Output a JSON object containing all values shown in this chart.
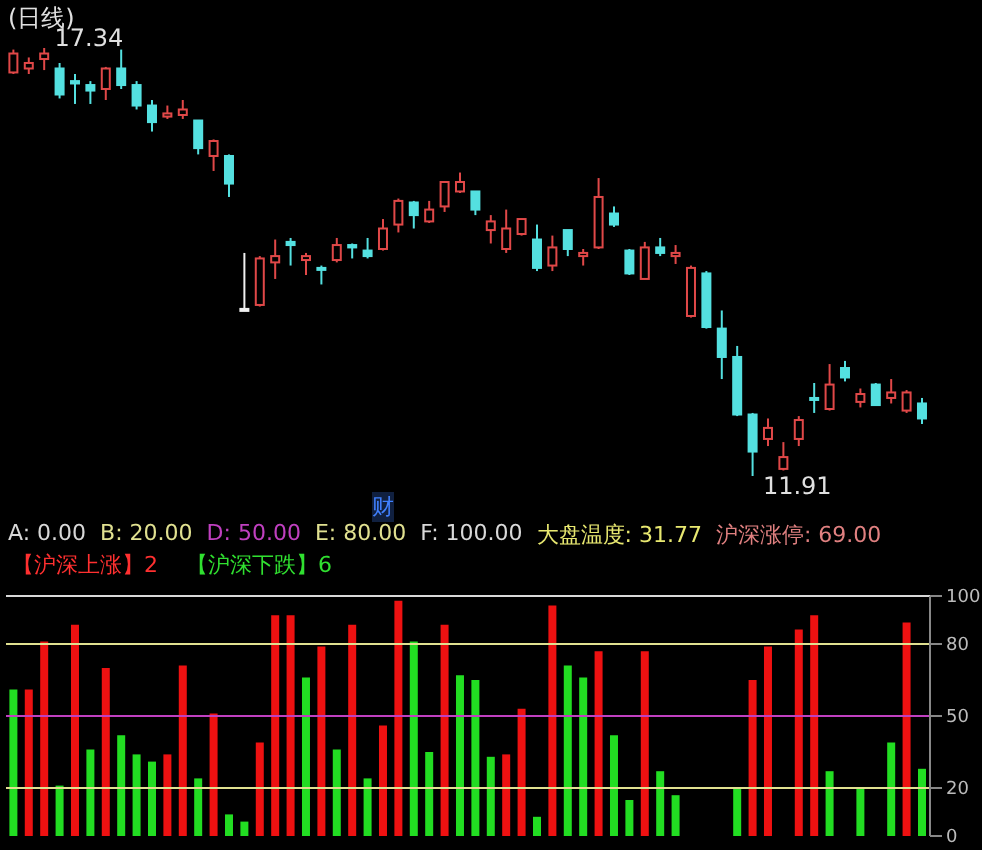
{
  "chart_data": [
    {
      "type": "candlestick",
      "title": "(日线)",
      "categories": [
        null,
        null,
        null,
        null,
        null,
        null,
        null,
        null,
        null,
        null,
        null,
        null,
        null,
        null,
        null,
        null,
        null,
        null,
        null,
        null,
        null,
        null,
        null,
        null,
        null,
        null,
        null,
        null,
        null,
        null,
        null,
        null,
        null,
        null,
        null,
        null,
        null,
        null,
        null,
        null,
        null,
        null,
        null,
        null,
        null,
        null,
        null,
        null,
        null,
        null,
        null,
        null,
        null,
        null,
        null,
        null,
        null,
        null,
        null,
        null
      ],
      "ohlc": [
        [
          17.03,
          17.32,
          17.01,
          17.27
        ],
        [
          17.08,
          17.22,
          17.01,
          17.15
        ],
        [
          17.2,
          17.34,
          17.06,
          17.27
        ],
        [
          17.08,
          17.15,
          16.7,
          16.75
        ],
        [
          16.92,
          17.01,
          16.63,
          16.89
        ],
        [
          16.87,
          16.92,
          16.63,
          16.8
        ],
        [
          16.82,
          17.1,
          16.68,
          17.08
        ],
        [
          17.08,
          17.32,
          16.82,
          16.87
        ],
        [
          16.87,
          16.92,
          16.56,
          16.61
        ],
        [
          16.61,
          16.68,
          16.28,
          16.4
        ],
        [
          16.47,
          16.61,
          16.44,
          16.51
        ],
        [
          16.49,
          16.68,
          16.44,
          16.56
        ],
        [
          16.42,
          16.42,
          15.99,
          16.07
        ],
        [
          15.97,
          16.18,
          15.78,
          16.16
        ],
        [
          15.97,
          15.99,
          15.45,
          15.62
        ],
        [
          14.03,
          14.74,
          14.01,
          14.03
        ],
        [
          14.08,
          14.7,
          14.06,
          14.67
        ],
        [
          14.62,
          14.91,
          14.41,
          14.7
        ],
        [
          14.88,
          14.93,
          14.58,
          14.84
        ],
        [
          14.65,
          14.74,
          14.46,
          14.7
        ],
        [
          14.55,
          14.58,
          14.34,
          14.53
        ],
        [
          14.65,
          14.93,
          14.62,
          14.84
        ],
        [
          14.84,
          14.86,
          14.67,
          14.81
        ],
        [
          14.77,
          14.93,
          14.67,
          14.7
        ],
        [
          14.79,
          15.17,
          14.77,
          15.05
        ],
        [
          15.1,
          15.43,
          15.0,
          15.4
        ],
        [
          15.38,
          15.4,
          15.05,
          15.22
        ],
        [
          15.14,
          15.4,
          15.12,
          15.29
        ],
        [
          15.33,
          15.64,
          15.26,
          15.64
        ],
        [
          15.52,
          15.76,
          15.5,
          15.64
        ],
        [
          15.52,
          15.52,
          15.22,
          15.29
        ],
        [
          15.03,
          15.22,
          14.86,
          15.14
        ],
        [
          14.79,
          15.29,
          14.74,
          15.05
        ],
        [
          14.98,
          15.17,
          14.96,
          15.17
        ],
        [
          14.91,
          15.1,
          14.51,
          14.55
        ],
        [
          14.58,
          14.96,
          14.51,
          14.81
        ],
        [
          15.03,
          15.03,
          14.7,
          14.79
        ],
        [
          14.7,
          14.79,
          14.58,
          14.74
        ],
        [
          14.81,
          15.69,
          14.79,
          15.45
        ],
        [
          15.24,
          15.33,
          15.07,
          15.1
        ],
        [
          14.77,
          14.79,
          14.46,
          14.48
        ],
        [
          14.41,
          14.88,
          14.41,
          14.81
        ],
        [
          14.81,
          14.93,
          14.7,
          14.74
        ],
        [
          14.7,
          14.84,
          14.6,
          14.74
        ],
        [
          13.94,
          14.58,
          13.92,
          14.55
        ],
        [
          14.48,
          14.51,
          13.78,
          13.8
        ],
        [
          13.78,
          14.01,
          13.14,
          13.42
        ],
        [
          13.42,
          13.56,
          12.67,
          12.69
        ],
        [
          12.69,
          12.71,
          11.91,
          12.22
        ],
        [
          12.38,
          12.64,
          12.29,
          12.52
        ],
        [
          12.0,
          12.34,
          11.98,
          12.15
        ],
        [
          12.38,
          12.67,
          12.29,
          12.62
        ],
        [
          12.9,
          13.09,
          12.71,
          12.9
        ],
        [
          12.76,
          13.33,
          12.74,
          13.07
        ],
        [
          13.28,
          13.37,
          13.11,
          13.16
        ],
        [
          12.85,
          13.02,
          12.78,
          12.95
        ],
        [
          13.07,
          13.09,
          12.81,
          12.81
        ],
        [
          12.9,
          13.14,
          12.83,
          12.97
        ],
        [
          12.74,
          13.0,
          12.71,
          12.97
        ],
        [
          12.83,
          12.9,
          12.57,
          12.64
        ]
      ],
      "colors": [
        "#e04848",
        "#e04848",
        "#e04848",
        "#54e0e0",
        "#54e0e0",
        "#54e0e0",
        "#e04848",
        "#54e0e0",
        "#54e0e0",
        "#54e0e0",
        "#e04848",
        "#e04848",
        "#54e0e0",
        "#e04848",
        "#54e0e0",
        "#f0f0f0",
        "#e04848",
        "#e04848",
        "#54e0e0",
        "#e04848",
        "#54e0e0",
        "#e04848",
        "#54e0e0",
        "#54e0e0",
        "#e04848",
        "#e04848",
        "#54e0e0",
        "#e04848",
        "#e04848",
        "#e04848",
        "#54e0e0",
        "#e04848",
        "#e04848",
        "#e04848",
        "#54e0e0",
        "#e04848",
        "#54e0e0",
        "#e04848",
        "#e04848",
        "#54e0e0",
        "#54e0e0",
        "#e04848",
        "#54e0e0",
        "#e04848",
        "#e04848",
        "#54e0e0",
        "#54e0e0",
        "#54e0e0",
        "#54e0e0",
        "#e04848",
        "#e04848",
        "#e04848",
        "#54e0e0",
        "#e04848",
        "#54e0e0",
        "#e04848",
        "#54e0e0",
        "#e04848",
        "#e04848",
        "#54e0e0"
      ],
      "tick_labels": false,
      "annotations": [
        "17.34",
        "11.91",
        "财"
      ]
    },
    {
      "type": "bar",
      "categories": [
        null,
        null,
        null,
        null,
        null,
        null,
        null,
        null,
        null,
        null,
        null,
        null,
        null,
        null,
        null,
        null,
        null,
        null,
        null,
        null,
        null,
        null,
        null,
        null,
        null,
        null,
        null,
        null,
        null,
        null,
        null,
        null,
        null,
        null,
        null,
        null,
        null,
        null,
        null,
        null,
        null,
        null,
        null,
        null,
        null,
        null,
        null,
        null,
        null,
        null,
        null,
        null,
        null,
        null,
        null,
        null,
        null,
        null,
        null,
        null
      ],
      "values": [
        61,
        61,
        81,
        21,
        88,
        36,
        70,
        42,
        34,
        31,
        34,
        71,
        24,
        51,
        9,
        6,
        39,
        92,
        92,
        66,
        79,
        36,
        88,
        24,
        46,
        98,
        81,
        35,
        88,
        67,
        65,
        33,
        34,
        53,
        8,
        96,
        71,
        66,
        77,
        42,
        15,
        77,
        27,
        17,
        null,
        null,
        null,
        20,
        65,
        79,
        null,
        86,
        92,
        27,
        null,
        20,
        null,
        39,
        89,
        28
      ],
      "colors": [
        "#22dd22",
        "#ee1111",
        "#ee1111",
        "#22dd22",
        "#ee1111",
        "#22dd22",
        "#ee1111",
        "#22dd22",
        "#22dd22",
        "#22dd22",
        "#ee1111",
        "#ee1111",
        "#22dd22",
        "#ee1111",
        "#22dd22",
        "#22dd22",
        "#ee1111",
        "#ee1111",
        "#ee1111",
        "#22dd22",
        "#ee1111",
        "#22dd22",
        "#ee1111",
        "#22dd22",
        "#ee1111",
        "#ee1111",
        "#22dd22",
        "#22dd22",
        "#ee1111",
        "#22dd22",
        "#22dd22",
        "#22dd22",
        "#ee1111",
        "#ee1111",
        "#22dd22",
        "#ee1111",
        "#22dd22",
        "#22dd22",
        "#ee1111",
        "#22dd22",
        "#22dd22",
        "#ee1111",
        "#22dd22",
        "#22dd22",
        null,
        null,
        null,
        "#22dd22",
        "#ee1111",
        "#ee1111",
        null,
        "#ee1111",
        "#ee1111",
        "#22dd22",
        null,
        "#22dd22",
        null,
        "#22dd22",
        "#ee1111",
        "#22dd22"
      ],
      "ylim": [
        0,
        100
      ],
      "yticks": [
        0,
        20,
        50,
        80,
        100
      ],
      "ref_lines": [
        {
          "axis": "y",
          "value": 20,
          "label": "B: 20.00",
          "color": "#e0e090"
        },
        {
          "axis": "y",
          "value": 50,
          "label": "D: 50.00",
          "color": "#c040c0"
        },
        {
          "axis": "y",
          "value": 80,
          "label": "E: 80.00",
          "color": "#e0e090"
        },
        {
          "axis": "y",
          "value": 100,
          "label": "F: 100.00",
          "color": "#d8d8d8"
        }
      ],
      "annotations": [
        "A: 0.00",
        "大盘温度: 31.77",
        "沪深涨停: 69.00",
        "【沪深上涨】2",
        "【沪深下跌】6"
      ]
    }
  ]
}
